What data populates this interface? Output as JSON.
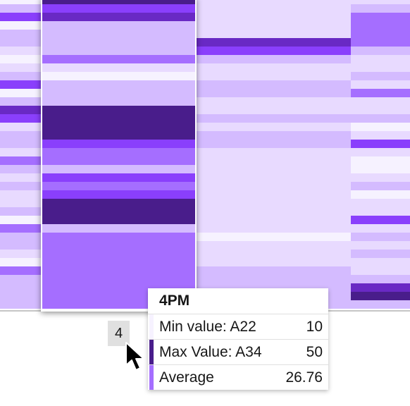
{
  "chart_data": {
    "type": "heatmap",
    "x_tick": "4",
    "palette": [
      "#f6f2ff",
      "#e8daff",
      "#d4bbff",
      "#a56eff",
      "#8a3ffc",
      "#6929c4",
      "#491d8b"
    ],
    "columns": [
      {
        "level": [
          0,
          2,
          4,
          0,
          2,
          2,
          1,
          0,
          1,
          2,
          4,
          0,
          2,
          5,
          4,
          1,
          2,
          2,
          1,
          3,
          2,
          1,
          2,
          1,
          1,
          2,
          0,
          3,
          2,
          2,
          1,
          0,
          3,
          2,
          2,
          2,
          2
        ]
      },
      {
        "level": [
          6,
          4,
          5,
          2,
          2,
          2,
          2,
          3,
          1,
          0,
          2,
          2,
          2,
          6,
          6,
          6,
          6,
          4,
          3,
          3,
          2,
          4,
          3,
          4,
          6,
          6,
          6,
          2,
          3,
          3,
          3,
          3,
          3,
          3,
          3,
          3,
          3
        ]
      },
      {
        "level": [
          1,
          1,
          1,
          1,
          1,
          5,
          4,
          2,
          1,
          1,
          2,
          2,
          1,
          1,
          2,
          1,
          2,
          2,
          1,
          1,
          1,
          1,
          1,
          1,
          1,
          1,
          1,
          1,
          0,
          1,
          1,
          1,
          2,
          2,
          2,
          2,
          2
        ]
      },
      {
        "level": [
          1,
          2,
          3,
          3,
          3,
          3,
          2,
          1,
          1,
          2,
          1,
          3,
          1,
          1,
          2,
          0,
          1,
          4,
          1,
          0,
          0,
          1,
          2,
          0,
          1,
          1,
          4,
          1,
          2,
          1,
          2,
          1,
          1,
          2,
          5,
          6,
          2
        ]
      }
    ]
  },
  "tooltip": {
    "title": "4PM",
    "rows": [
      {
        "label": "Min value: A22",
        "value": "10",
        "color": "#f6f2ff"
      },
      {
        "label": "Max Value: A34",
        "value": "50",
        "color": "#491d8b"
      },
      {
        "label": "Average",
        "value": "26.76",
        "color": "#a56eff"
      }
    ]
  }
}
